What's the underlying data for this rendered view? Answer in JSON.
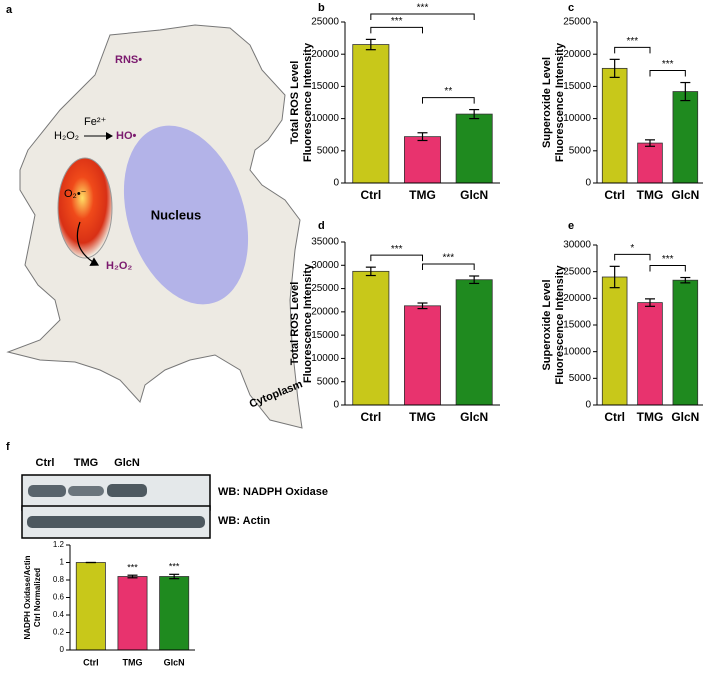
{
  "diagram": {
    "panel": "a",
    "rns": "RNS•",
    "h2o2_top": "H₂O₂",
    "fe": "Fe²⁺",
    "ho": "HO•",
    "superoxide": "O₂•⁻",
    "nucleus": "Nucleus",
    "h2o2_bottom": "H₂O₂",
    "cytoplasm": "Cytoplasm"
  },
  "blot": {
    "panel": "f",
    "lanes": [
      "Ctrl",
      "TMG",
      "GlcN"
    ],
    "rows": [
      "WB: NADPH Oxidase",
      "WB: Actin"
    ]
  },
  "chart_data": [
    {
      "type": "bar",
      "panel": "b",
      "ylabel": [
        "Total ROS Level",
        "Fluorescence Intensity"
      ],
      "categories": [
        "Ctrl",
        "TMG",
        "GlcN"
      ],
      "values": [
        21500,
        7200,
        10700
      ],
      "errors": [
        800,
        600,
        700
      ],
      "colors": [
        "#c8c81a",
        "#e8336e",
        "#1f8a1f"
      ],
      "ylim": [
        0,
        25000
      ],
      "yticks": [
        0,
        5000,
        10000,
        15000,
        20000,
        25000
      ],
      "annotations": [
        {
          "categories": [
            "Ctrl",
            "TMG"
          ],
          "label": "***"
        },
        {
          "categories": [
            "TMG",
            "GlcN"
          ],
          "label": "**"
        },
        {
          "categories": [
            "Ctrl",
            "GlcN"
          ],
          "label": "***"
        }
      ]
    },
    {
      "type": "bar",
      "panel": "c",
      "ylabel": [
        "Superoxide Level",
        "Fluorescence Intensity"
      ],
      "categories": [
        "Ctrl",
        "TMG",
        "GlcN"
      ],
      "values": [
        17800,
        6200,
        14200
      ],
      "errors": [
        1400,
        500,
        1400
      ],
      "colors": [
        "#c8c81a",
        "#e8336e",
        "#1f8a1f"
      ],
      "ylim": [
        0,
        25000
      ],
      "yticks": [
        0,
        5000,
        10000,
        15000,
        20000,
        25000
      ],
      "annotations": [
        {
          "categories": [
            "Ctrl",
            "TMG"
          ],
          "label": "***"
        },
        {
          "categories": [
            "TMG",
            "GlcN"
          ],
          "label": "***"
        }
      ]
    },
    {
      "type": "bar",
      "panel": "d",
      "ylabel": [
        "Total ROS Level",
        "Fluorescence Intensity"
      ],
      "categories": [
        "Ctrl",
        "TMG",
        "GlcN"
      ],
      "values": [
        28700,
        21300,
        26900
      ],
      "errors": [
        900,
        600,
        800
      ],
      "colors": [
        "#c8c81a",
        "#e8336e",
        "#1f8a1f"
      ],
      "ylim": [
        0,
        35000
      ],
      "yticks": [
        0,
        5000,
        10000,
        15000,
        20000,
        25000,
        30000,
        35000
      ],
      "annotations": [
        {
          "categories": [
            "Ctrl",
            "TMG"
          ],
          "label": "***"
        },
        {
          "categories": [
            "TMG",
            "GlcN"
          ],
          "label": "***"
        }
      ]
    },
    {
      "type": "bar",
      "panel": "e",
      "ylabel": [
        "Superoxide Level",
        "Fluorescence Intensity"
      ],
      "categories": [
        "Ctrl",
        "TMG",
        "GlcN"
      ],
      "values": [
        24000,
        19200,
        23400
      ],
      "errors": [
        2000,
        700,
        500
      ],
      "colors": [
        "#c8c81a",
        "#e8336e",
        "#1f8a1f"
      ],
      "ylim": [
        0,
        30000
      ],
      "yticks": [
        0,
        5000,
        10000,
        15000,
        20000,
        25000,
        30000
      ],
      "annotations": [
        {
          "categories": [
            "Ctrl",
            "TMG"
          ],
          "label": "*"
        },
        {
          "categories": [
            "TMG",
            "GlcN"
          ],
          "label": "***"
        }
      ]
    },
    {
      "type": "bar",
      "ylabel": [
        "NADPH Oxidase/Actin",
        "Ctrl Normalized"
      ],
      "categories": [
        "Ctrl",
        "TMG",
        "GlcN"
      ],
      "values": [
        1,
        0.84,
        0.84
      ],
      "errors": [
        0,
        0.015,
        0.025
      ],
      "colors": [
        "#c8c81a",
        "#e8336e",
        "#1f8a1f"
      ],
      "ylim": [
        0,
        1.2
      ],
      "yticks": [
        0,
        0.2,
        0.4,
        0.6,
        0.8,
        1,
        1.2
      ],
      "annotations": [
        {
          "categories": [
            "TMG"
          ],
          "label": "***"
        },
        {
          "categories": [
            "GlcN"
          ],
          "label": "***"
        }
      ]
    }
  ]
}
